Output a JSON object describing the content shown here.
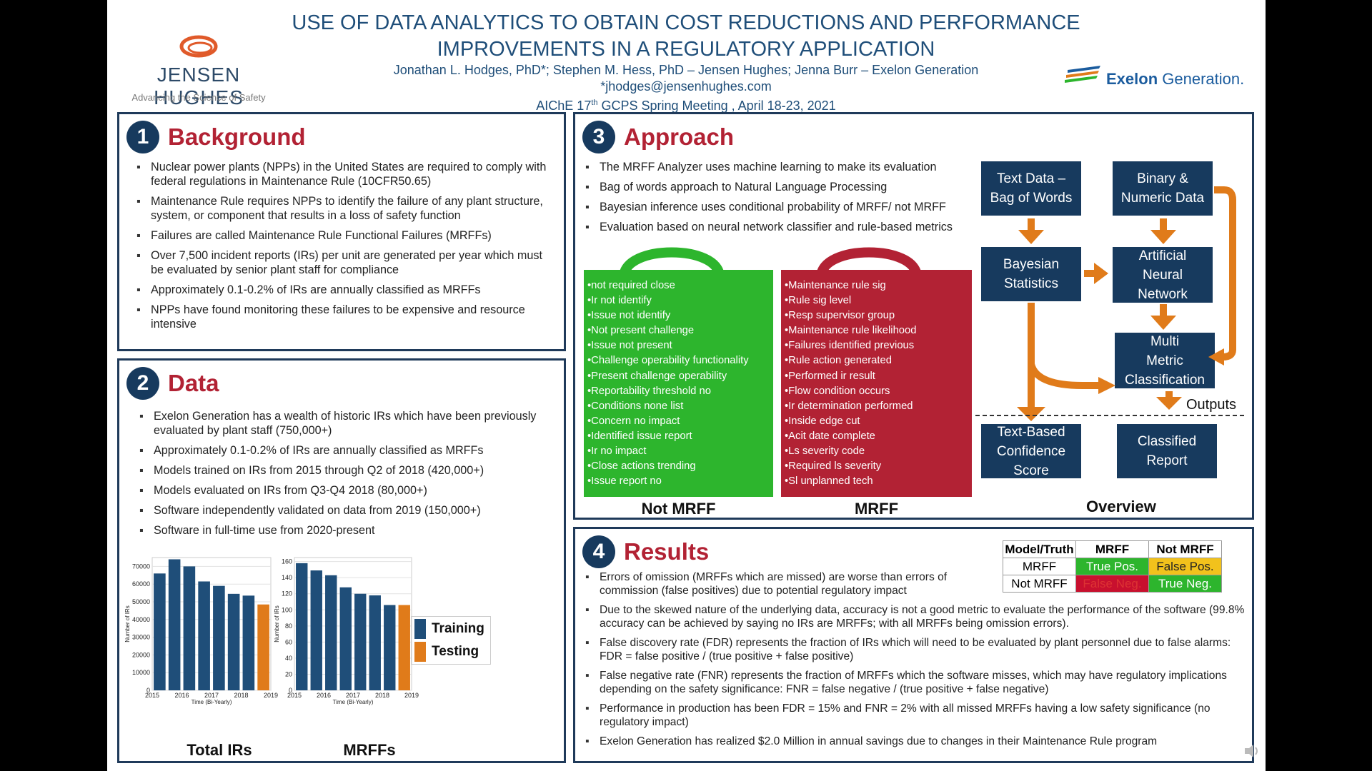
{
  "header": {
    "title": "USE OF DATA ANALYTICS TO OBTAIN COST REDUCTIONS AND PERFORMANCE IMPROVEMENTS IN A REGULATORY APPLICATION",
    "authors": "Jonathan L. Hodges, PhD*; Stephen M. Hess, PhD – Jensen Hughes; Jenna Burr – Exelon Generation",
    "email": "*jhodges@jensenhughes.com",
    "meeting_pre": "AIChE 17",
    "meeting_sup": "th",
    "meeting_post": " GCPS Spring Meeting , April 18-23, 2021"
  },
  "logos": {
    "left_name": "JENSEN HUGHES",
    "left_tagline": "Advancing the Science of Safety",
    "right_name_a": "Exelon",
    "right_name_b": "Generation."
  },
  "background": {
    "number": "1",
    "title": "Background",
    "bullets": [
      "Nuclear power plants (NPPs) in the United States are required to comply with federal regulations in Maintenance Rule (10CFR50.65)",
      "Maintenance Rule requires NPPs to identify the failure of any plant structure, system, or component that results in a loss of safety function",
      "Failures are called Maintenance Rule Functional Failures (MRFFs)",
      "Over 7,500 incident reports (IRs) per unit are generated per year which must be evaluated by senior plant staff for compliance",
      "Approximately 0.1-0.2% of IRs are annually classified as MRFFs",
      "NPPs have found monitoring these failures to be expensive and resource intensive"
    ]
  },
  "data": {
    "number": "2",
    "title": "Data",
    "bullets": [
      "Exelon Generation has a wealth of historic IRs which have been previously evaluated by plant staff (750,000+)",
      "Approximately 0.1-0.2% of IRs are annually classified as MRFFs",
      "Models trained on IRs from 2015 through Q2 of 2018 (420,000+)",
      "Models evaluated on IRs from Q3-Q4 2018 (80,000+)",
      "Software independently validated on data from 2019 (150,000+)",
      "Software in full-time use from 2020-present"
    ]
  },
  "chart_data": [
    {
      "type": "bar",
      "title": "Total IRs",
      "xlabel": "Time (Bi-Yearly)",
      "ylabel": "Number of IRs",
      "x_ticks": [
        "2015",
        "2016",
        "2017",
        "2018",
        "2019"
      ],
      "ylim": [
        0,
        75000
      ],
      "y_ticks": [
        0,
        10000,
        20000,
        30000,
        40000,
        50000,
        60000,
        70000
      ],
      "values": [
        66000,
        74000,
        70000,
        61500,
        59000,
        54500,
        53500,
        48500
      ],
      "groups": [
        "Training",
        "Training",
        "Training",
        "Training",
        "Training",
        "Training",
        "Training",
        "Testing"
      ],
      "grid": true
    },
    {
      "type": "bar",
      "title": "MRFFs",
      "xlabel": "Time (Bi-Yearly)",
      "ylabel": "Number of IRs",
      "x_ticks": [
        "2015",
        "2016",
        "2017",
        "2018",
        "2019"
      ],
      "ylim": [
        0,
        165
      ],
      "y_ticks": [
        0,
        20,
        40,
        60,
        80,
        100,
        120,
        140,
        160
      ],
      "values": [
        158,
        149,
        143,
        128,
        120,
        118,
        106,
        106
      ],
      "groups": [
        "Training",
        "Training",
        "Training",
        "Training",
        "Training",
        "Training",
        "Training",
        "Testing"
      ],
      "grid": true
    }
  ],
  "legend": {
    "training": "Training",
    "testing": "Testing",
    "training_color": "#1f4e79",
    "testing_color": "#e07b1a"
  },
  "approach": {
    "number": "3",
    "title": "Approach",
    "bullets": [
      "The MRFF Analyzer uses machine learning to make its evaluation",
      "Bag of words approach to Natural Language Processing",
      "Bayesian inference uses conditional probability of MRFF/ not MRFF",
      "Evaluation based on neural network classifier and rule-based metrics"
    ],
    "not_mrff_words": [
      "not required close",
      "Ir not identify",
      "Issue not identify",
      "Not present challenge",
      "Issue not present",
      "Challenge operability functionality",
      "Present challenge operability",
      "Reportability threshold no",
      "Conditions none list",
      "Concern no impact",
      "Identified issue report",
      "Ir no impact",
      "Close actions trending",
      "Issue report no"
    ],
    "mrff_words": [
      "Maintenance rule sig",
      "Rule sig level",
      "Resp supervisor group",
      "Maintenance rule likelihood",
      "Failures identified previous",
      "Rule action generated",
      "Performed ir result",
      "Flow condition occurs",
      "Ir determination performed",
      "Inside edge cut",
      "Acit date complete",
      "Ls severity code",
      "Required ls severity",
      "Sl unplanned tech"
    ],
    "not_mrff_label": "Not MRFF",
    "mrff_label": "MRFF",
    "not_mrff_color": "#2db52d",
    "mrff_color": "#b22234",
    "flow": {
      "text_data": "Text Data –\nBag of Words",
      "binary": "Binary &\nNumeric Data",
      "bayes": "Bayesian\nStatistics",
      "ann": "Artificial\nNeural\nNetwork",
      "multi": "Multi\nMetric\nClassification",
      "outputs": "Outputs",
      "confidence": "Text-Based\nConfidence\nScore",
      "report": "Classified\nReport",
      "overview": "Overview"
    }
  },
  "results": {
    "number": "4",
    "title": "Results",
    "matrix": {
      "header": [
        "Model/Truth",
        "MRFF",
        "Not MRFF"
      ],
      "row1": [
        "MRFF",
        "True Pos.",
        "False Pos."
      ],
      "row2": [
        "Not MRFF",
        "False Neg.",
        "True Neg."
      ]
    },
    "bullets": [
      "Errors of omission (MRFFs which are missed) are worse than errors of commission (false positives) due to potential regulatory impact",
      "Due to the skewed nature of the underlying data, accuracy is not a good metric to evaluate the performance of the software (99.8% accuracy can be achieved by saying no IRs are MRFFs; with all MRFFs being omission errors).",
      "False discovery rate (FDR) represents the fraction of IRs which will need to be evaluated by plant personnel due to false alarms: FDR = false positive / (true positive + false positive)",
      "False negative rate (FNR) represents the fraction of MRFFs which the software misses, which may have regulatory implications depending on the safety significance: FNR = false negative / (true positive + false negative)",
      "Performance in production has been FDR = 15% and FNR = 2% with all missed MRFFs having a low safety significance (no regulatory impact)",
      "Exelon Generation has realized $2.0 Million in annual savings due to changes in their Maintenance Rule program"
    ]
  }
}
